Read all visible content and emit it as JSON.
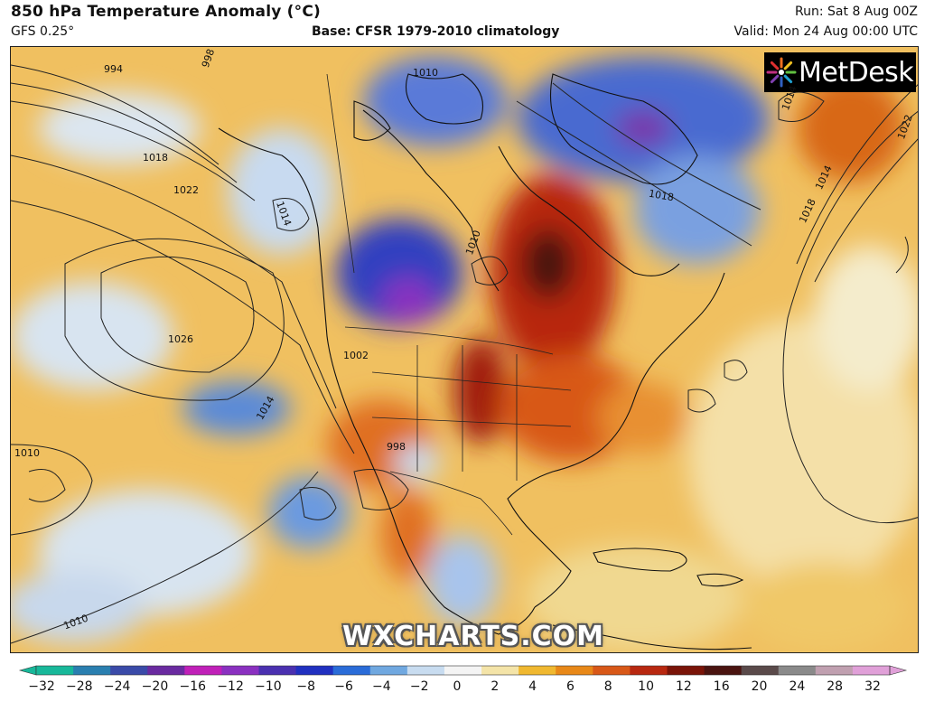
{
  "header": {
    "title": "850 hPa Temperature Anomaly (°C)",
    "model": "GFS 0.25°",
    "base": "Base: CFSR 1979-2010 climatology",
    "run": "Run: Sat 8 Aug 00Z",
    "valid": "Valid: Mon 24 Aug 00:00 UTC"
  },
  "branding": {
    "logo_text": "MetDesk",
    "watermark": "WXCHARTS.COM"
  },
  "isobar_labels": [
    "994",
    "998",
    "1018",
    "1022",
    "1026",
    "1014",
    "1010",
    "1002",
    "998",
    "1014",
    "1018",
    "1014",
    "1022",
    "1010",
    "1010",
    "1018",
    "1014",
    "1010"
  ],
  "colorbar": {
    "ticks": [
      "−32",
      "−28",
      "−24",
      "−20",
      "−16",
      "−12",
      "−10",
      "−8",
      "−6",
      "−4",
      "−2",
      "0",
      "2",
      "4",
      "6",
      "8",
      "10",
      "12",
      "16",
      "20",
      "24",
      "28",
      "32"
    ],
    "colors": [
      "#18b89a",
      "#2a7fb0",
      "#3a4aa8",
      "#6a2aa0",
      "#c020b8",
      "#8a30c0",
      "#4a30b0",
      "#2030c0",
      "#2a6cd8",
      "#70a8e0",
      "#c8dcf0",
      "#f4f4f4",
      "#f4e4a8",
      "#f0b830",
      "#e88818",
      "#d85818",
      "#b82810",
      "#7a1408",
      "#4a1410",
      "#5a4a4a",
      "#8a8a8a",
      "#c0a0b0",
      "#e0a0d8"
    ]
  }
}
